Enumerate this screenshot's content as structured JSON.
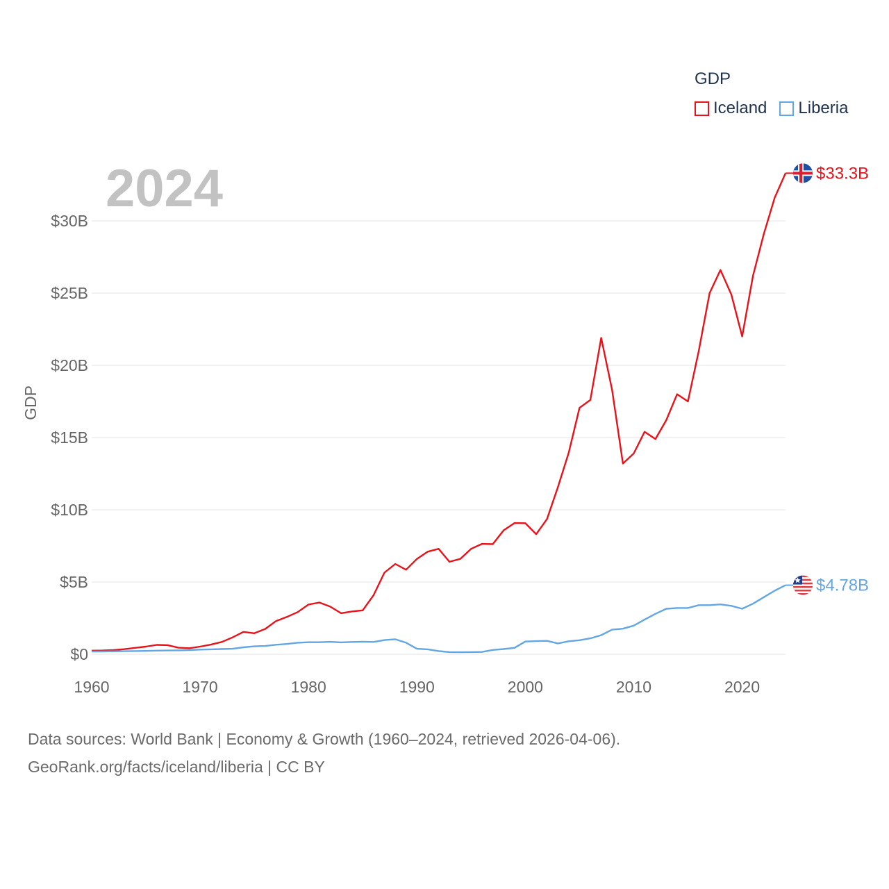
{
  "legend": {
    "title": "GDP"
  },
  "year_label": "2024",
  "source": {
    "line1": "Data sources: World Bank | Economy & Growth (1960–2024, retrieved 2026-04-06).",
    "line2": "GeoRank.org/facts/iceland/liberia | CC BY"
  },
  "colors": {
    "iceland": "#e8121a",
    "liberia": "#63a6e4",
    "grid": "#e6e6e6",
    "axis_text": "#666666"
  },
  "chart_data": {
    "type": "line",
    "title": "GDP",
    "xlabel": "",
    "ylabel": "GDP",
    "xlim": [
      1960,
      2024
    ],
    "ylim": [
      0,
      30
    ],
    "y_unit": "billion USD",
    "x_ticks": [
      1960,
      1970,
      1980,
      1990,
      2000,
      2010,
      2020
    ],
    "y_ticks": [
      {
        "value": 0,
        "label": "$0"
      },
      {
        "value": 5,
        "label": "$5B"
      },
      {
        "value": 10,
        "label": "$10B"
      },
      {
        "value": 15,
        "label": "$15B"
      },
      {
        "value": 20,
        "label": "$20B"
      },
      {
        "value": 25,
        "label": "$25B"
      },
      {
        "value": 30,
        "label": "$30B"
      }
    ],
    "x": [
      1960,
      1961,
      1962,
      1963,
      1964,
      1965,
      1966,
      1967,
      1968,
      1969,
      1970,
      1971,
      1972,
      1973,
      1974,
      1975,
      1976,
      1977,
      1978,
      1979,
      1980,
      1981,
      1982,
      1983,
      1984,
      1985,
      1986,
      1987,
      1988,
      1989,
      1990,
      1991,
      1992,
      1993,
      1994,
      1995,
      1996,
      1997,
      1998,
      1999,
      2000,
      2001,
      2002,
      2003,
      2004,
      2005,
      2006,
      2007,
      2008,
      2009,
      2010,
      2011,
      2012,
      2013,
      2014,
      2015,
      2016,
      2017,
      2018,
      2019,
      2020,
      2021,
      2022,
      2023,
      2024
    ],
    "series": [
      {
        "name": "Iceland",
        "end_label": "$33.3B",
        "values": [
          0.25,
          0.26,
          0.29,
          0.35,
          0.44,
          0.53,
          0.65,
          0.63,
          0.45,
          0.42,
          0.53,
          0.67,
          0.85,
          1.17,
          1.55,
          1.45,
          1.75,
          2.3,
          2.58,
          2.92,
          3.44,
          3.58,
          3.3,
          2.84,
          2.96,
          3.04,
          4.08,
          5.65,
          6.25,
          5.85,
          6.6,
          7.1,
          7.3,
          6.4,
          6.6,
          7.3,
          7.64,
          7.62,
          8.58,
          9.08,
          9.07,
          8.31,
          9.36,
          11.56,
          13.94,
          17.06,
          17.6,
          21.9,
          18.3,
          13.2,
          13.9,
          15.4,
          14.9,
          16.2,
          18.0,
          17.5,
          21.0,
          25.0,
          26.6,
          24.9,
          22.0,
          26.2,
          29.1,
          31.6,
          33.3
        ]
      },
      {
        "name": "Liberia",
        "end_label": "$4.78B",
        "values": [
          0.19,
          0.19,
          0.2,
          0.21,
          0.22,
          0.23,
          0.25,
          0.26,
          0.27,
          0.29,
          0.32,
          0.34,
          0.36,
          0.38,
          0.48,
          0.55,
          0.57,
          0.66,
          0.71,
          0.8,
          0.83,
          0.83,
          0.86,
          0.82,
          0.85,
          0.87,
          0.85,
          0.98,
          1.04,
          0.8,
          0.38,
          0.34,
          0.22,
          0.15,
          0.14,
          0.15,
          0.16,
          0.3,
          0.36,
          0.44,
          0.88,
          0.91,
          0.93,
          0.75,
          0.9,
          0.97,
          1.1,
          1.32,
          1.7,
          1.77,
          1.98,
          2.4,
          2.8,
          3.15,
          3.2,
          3.2,
          3.4,
          3.4,
          3.45,
          3.35,
          3.15,
          3.5,
          3.95,
          4.4,
          4.78
        ]
      }
    ]
  }
}
